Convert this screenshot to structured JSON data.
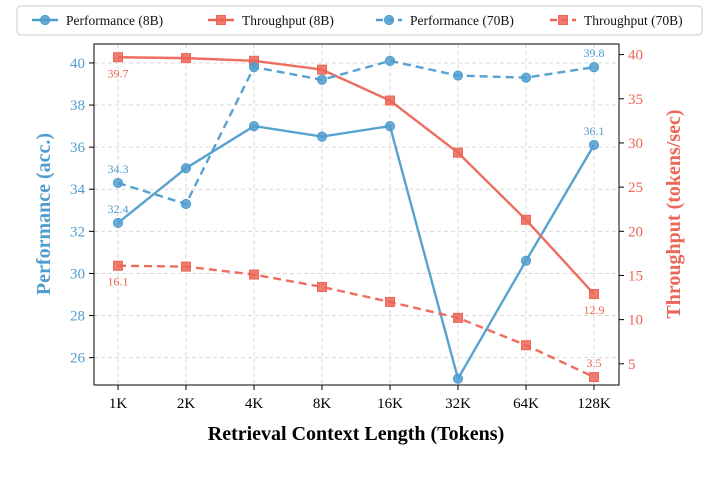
{
  "chart_data": {
    "type": "line",
    "xlabel": "Retrieval Context Length (Tokens)",
    "ylabel_left": "Performance (acc.)",
    "ylabel_right": "Throughput (tokens/sec)",
    "categories": [
      "1K",
      "2K",
      "4K",
      "8K",
      "16K",
      "32K",
      "64K",
      "128K"
    ],
    "ylim_left": [
      24.7,
      40.9
    ],
    "ylim_right": [
      2.6,
      41.2
    ],
    "yticks_left": [
      26,
      28,
      30,
      32,
      34,
      36,
      38,
      40
    ],
    "yticks_right": [
      5,
      10,
      15,
      20,
      25,
      30,
      35,
      40
    ],
    "grid": true,
    "legend_position": "top",
    "colors": {
      "performance": "#4f9dce",
      "throughput": "#ec6556",
      "axis": "#000000"
    },
    "series": [
      {
        "name": "Performance (8B)",
        "axis": "left",
        "style": "solid",
        "marker": "circle",
        "color": "#4f9dce",
        "values": [
          32.4,
          35.0,
          37.0,
          36.5,
          37.0,
          25.0,
          30.6,
          36.1
        ]
      },
      {
        "name": "Throughput (8B)",
        "axis": "right",
        "style": "solid",
        "marker": "square",
        "color": "#ec6556",
        "values": [
          39.7,
          39.6,
          39.3,
          38.3,
          34.8,
          28.9,
          21.3,
          12.9
        ]
      },
      {
        "name": "Performance (70B)",
        "axis": "left",
        "style": "dashed",
        "marker": "circle",
        "color": "#4f9dce",
        "values": [
          34.3,
          33.3,
          39.8,
          39.2,
          40.1,
          39.4,
          39.3,
          39.8
        ]
      },
      {
        "name": "Throughput (70B)",
        "axis": "right",
        "style": "dashed",
        "marker": "square",
        "color": "#ec6556",
        "values": [
          16.1,
          16.0,
          15.1,
          13.7,
          12.0,
          10.2,
          7.1,
          3.5
        ]
      }
    ],
    "annotations": [
      {
        "text": "32.4",
        "series": 0,
        "index": 0,
        "placement": "above",
        "color": "#4f9dce"
      },
      {
        "text": "34.3",
        "series": 2,
        "index": 0,
        "placement": "above",
        "color": "#4f9dce"
      },
      {
        "text": "36.1",
        "series": 0,
        "index": 7,
        "placement": "above",
        "color": "#4f9dce"
      },
      {
        "text": "39.8",
        "series": 2,
        "index": 7,
        "placement": "above",
        "color": "#4f9dce"
      },
      {
        "text": "39.7",
        "series": 1,
        "index": 0,
        "placement": "below",
        "color": "#ec6556"
      },
      {
        "text": "16.1",
        "series": 3,
        "index": 0,
        "placement": "below",
        "color": "#ec6556"
      },
      {
        "text": "12.9",
        "series": 1,
        "index": 7,
        "placement": "below",
        "color": "#ec6556"
      },
      {
        "text": "3.5",
        "series": 3,
        "index": 7,
        "placement": "above",
        "color": "#ec6556"
      }
    ]
  }
}
